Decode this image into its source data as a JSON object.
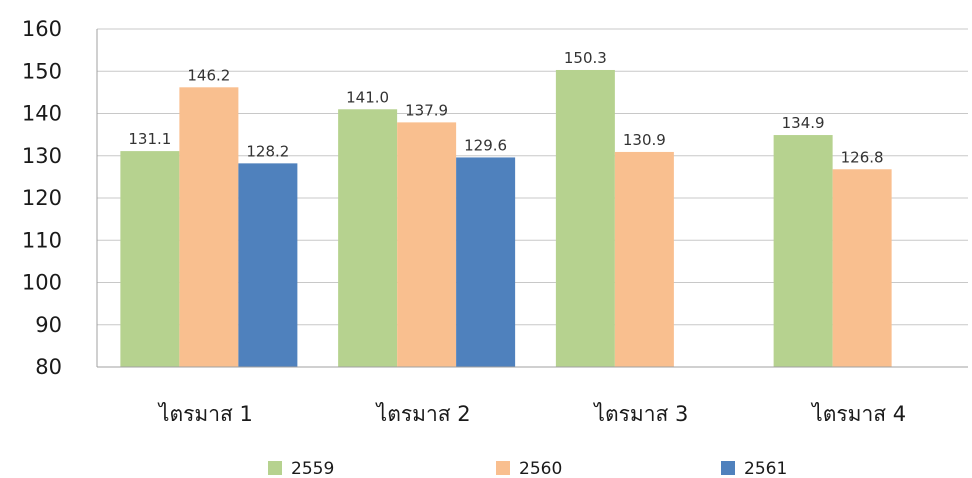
{
  "chart_data": {
    "type": "bar",
    "title": "",
    "xlabel": "",
    "ylabel": "",
    "ylim": [
      80,
      160
    ],
    "yticks": [
      80,
      90,
      100,
      110,
      120,
      130,
      140,
      150,
      160
    ],
    "grid": true,
    "legend_position": "bottom",
    "categories": [
      "ไตรมาส 1",
      "ไตรมาส 2",
      "ไตรมาส 3",
      "ไตรมาส 4"
    ],
    "series": [
      {
        "name": "2559",
        "color": "#b6d28f",
        "values": [
          131.1,
          141.0,
          150.3,
          134.9
        ],
        "labels": [
          "131.1",
          "141.0",
          "150.3",
          "134.9"
        ]
      },
      {
        "name": "2560",
        "color": "#f9bf8f",
        "values": [
          146.2,
          137.9,
          130.9,
          126.8
        ],
        "labels": [
          "146.2",
          "137.9",
          "130.9",
          "126.8"
        ]
      },
      {
        "name": "2561",
        "color": "#4f81bd",
        "values": [
          128.2,
          129.6,
          null,
          null
        ],
        "labels": [
          "128.2",
          "129.6",
          null,
          null
        ]
      }
    ]
  }
}
